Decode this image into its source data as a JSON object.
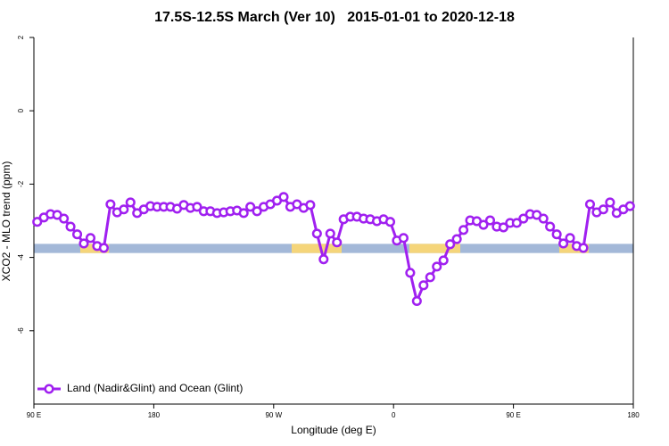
{
  "chart_data": {
    "type": "line",
    "title": "17.5S-12.5S March (Ver 10)   2015-01-01 to 2020-12-18",
    "x_label": "Longitude (deg E)",
    "y_label": "XCO2 - MLO trend (ppm)",
    "xlim": [
      90,
      540
    ],
    "xticks": [
      {
        "value": 90,
        "label": "90 E"
      },
      {
        "value": 180,
        "label": "180"
      },
      {
        "value": 270,
        "label": "90 W"
      },
      {
        "value": 360,
        "label": "0"
      },
      {
        "value": 450,
        "label": "90 E"
      },
      {
        "value": 540,
        "label": "180"
      }
    ],
    "ylim": [
      -8,
      2
    ],
    "yticks": [
      -6,
      -4,
      -2,
      0,
      2
    ],
    "legend_position": "bottom-left",
    "land_ocean_strip": {
      "y": [
        -3.88,
        -3.63
      ],
      "ocean_color": "#a3b8d8",
      "land_color": "#f5d57a",
      "land": [
        [
          124.8,
          146.3
        ],
        [
          283.5,
          321
        ],
        [
          371.9,
          410.1
        ],
        [
          484.4,
          506.5
        ]
      ]
    },
    "x": [
      92.5,
      97.5,
      102.5,
      107.5,
      112.5,
      117.5,
      122.5,
      127.5,
      132.5,
      137.5,
      142.5,
      147.5,
      152.5,
      157.5,
      162.5,
      167.5,
      172.5,
      177.5,
      182.5,
      187.5,
      192.5,
      197.5,
      202.5,
      207.5,
      212.5,
      217.5,
      222.5,
      227.5,
      232.5,
      237.5,
      242.5,
      247.5,
      252.5,
      257.5,
      262.5,
      267.5,
      272.5,
      277.5,
      282.5,
      287.5,
      292.5,
      297.5,
      302.5,
      307.5,
      312.5,
      317.5,
      322.5,
      327.5,
      332.5,
      337.5,
      342.5,
      347.5,
      352.5,
      357.5,
      362.5,
      367.5,
      372.5,
      377.5,
      382.5,
      387.5,
      392.5,
      397.5,
      402.5,
      407.5,
      412.5,
      417.5,
      422.5,
      427.5,
      432.5,
      437.5,
      442.5,
      447.5,
      452.5,
      457.5,
      462.5,
      467.5,
      472.5,
      477.5,
      482.5,
      487.5,
      492.5,
      497.5,
      502.5,
      507.5,
      512.5,
      517.5,
      522.5,
      527.5,
      532.5,
      537.5
    ],
    "series": [
      {
        "name": "Land (Nadir&Glint) and Ocean (Glint)",
        "color": "#a020f0",
        "values": [
          -3.03,
          -2.91,
          -2.82,
          -2.84,
          -2.94,
          -3.16,
          -3.37,
          -3.62,
          -3.47,
          -3.69,
          -3.74,
          -2.55,
          -2.77,
          -2.69,
          -2.5,
          -2.79,
          -2.69,
          -2.6,
          -2.62,
          -2.62,
          -2.62,
          -2.67,
          -2.57,
          -2.65,
          -2.62,
          -2.74,
          -2.74,
          -2.79,
          -2.77,
          -2.74,
          -2.72,
          -2.79,
          -2.62,
          -2.74,
          -2.62,
          -2.55,
          -2.45,
          -2.35,
          -2.62,
          -2.55,
          -2.65,
          -2.57,
          -3.35,
          -4.05,
          -3.35,
          -3.59,
          -2.96,
          -2.89,
          -2.89,
          -2.94,
          -2.96,
          -3.01,
          -2.96,
          -3.03,
          -3.54,
          -3.47,
          -4.42,
          -5.19,
          -4.76,
          -4.54,
          -4.25,
          -4.08,
          -3.64,
          -3.5,
          -3.25,
          -2.99,
          -3.01,
          -3.11,
          -2.99,
          -3.16,
          -3.18,
          -3.06,
          -3.06,
          -2.94,
          -2.82,
          -2.84,
          -2.94,
          -3.16,
          -3.37,
          -3.62,
          -3.47,
          -3.69,
          -3.74,
          -2.55,
          -2.77,
          -2.69,
          -2.5,
          -2.79,
          -2.69,
          -2.6
        ]
      }
    ]
  }
}
